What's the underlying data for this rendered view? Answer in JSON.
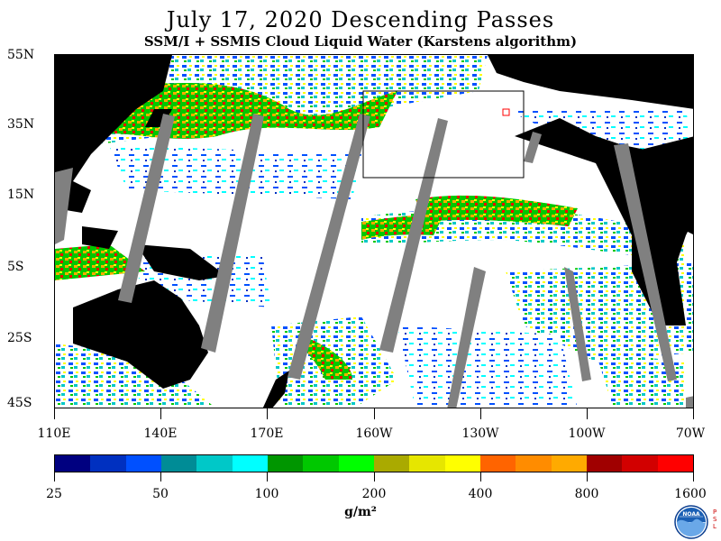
{
  "title": "July 17, 2020  Descending Passes",
  "subtitle": "SSM/I + SSMIS Cloud Liquid Water (Karstens algorithm)",
  "lat_labels": [
    "55N",
    "35N",
    "15N",
    "5S",
    "25S",
    "45S"
  ],
  "lon_labels": [
    "110E",
    "140E",
    "170E",
    "160W",
    "130W",
    "100W",
    "70W"
  ],
  "colorbar": {
    "colors": [
      "#000080",
      "#0030c0",
      "#0050ff",
      "#008c96",
      "#00c8c8",
      "#00ffff",
      "#009600",
      "#00c800",
      "#00ff00",
      "#aaaa00",
      "#e6e600",
      "#ffff00",
      "#ff6400",
      "#ff8c00",
      "#ffaa00",
      "#a00000",
      "#d20000",
      "#ff0000"
    ],
    "labels": [
      "25",
      "50",
      "100",
      "200",
      "400",
      "800",
      "1600"
    ],
    "units": "g/m²"
  },
  "logo": {
    "text": "NOAA",
    "side_text": "P\nS\nL"
  }
}
